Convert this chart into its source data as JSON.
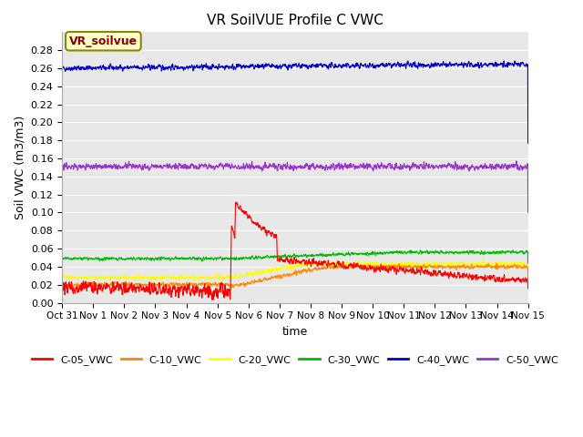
{
  "title": "VR SoilVUE Profile C VWC",
  "xlabel": "time",
  "ylabel": "Soil VWC (m3/m3)",
  "ylim": [
    0.0,
    0.3
  ],
  "yticks": [
    0.0,
    0.02,
    0.04,
    0.06,
    0.08,
    0.1,
    0.12,
    0.14,
    0.16,
    0.18,
    0.2,
    0.22,
    0.24,
    0.26,
    0.28
  ],
  "series": {
    "C-05_VWC": {
      "color": "#ff0000",
      "lw": 0.8
    },
    "C-10_VWC": {
      "color": "#ff8800",
      "lw": 0.8
    },
    "C-20_VWC": {
      "color": "#ffff00",
      "lw": 0.8
    },
    "C-30_VWC": {
      "color": "#00bb00",
      "lw": 0.8
    },
    "C-40_VWC": {
      "color": "#0000cc",
      "lw": 0.8
    },
    "C-50_VWC": {
      "color": "#9933cc",
      "lw": 0.8
    }
  },
  "legend_label": "VR_soilvue",
  "legend_box_color": "#ffffcc",
  "legend_text_color": "#880000",
  "background_color": "#e8e8e8",
  "grid_color": "#ffffff",
  "n_points": 2016,
  "start_day": 0,
  "end_day": 15,
  "spike_day": 5.42
}
